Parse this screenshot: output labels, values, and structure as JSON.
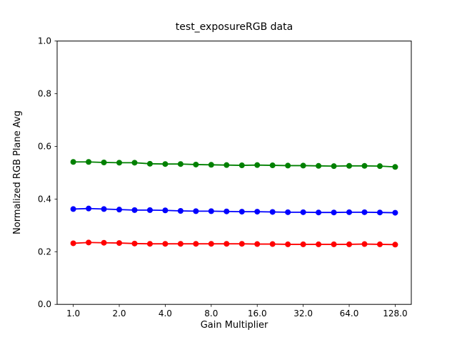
{
  "chart_data": {
    "type": "line",
    "title": "test_exposureRGB data",
    "xlabel": "Gain Multiplier",
    "ylabel": "Normalized RGB Plane Avg",
    "x_scale": "log2",
    "xlim": [
      0.784,
      163.2
    ],
    "ylim": [
      0.0,
      1.0
    ],
    "grid": false,
    "legend": "none",
    "xticks": [
      {
        "value": 1,
        "label": "1.0"
      },
      {
        "value": 2,
        "label": "2.0"
      },
      {
        "value": 4,
        "label": "4.0"
      },
      {
        "value": 8,
        "label": "8.0"
      },
      {
        "value": 16,
        "label": "16.0"
      },
      {
        "value": 32,
        "label": "32.0"
      },
      {
        "value": 64,
        "label": "64.0"
      },
      {
        "value": 128,
        "label": "128.0"
      }
    ],
    "yticks": [
      {
        "value": 0.0,
        "label": "0.0"
      },
      {
        "value": 0.2,
        "label": "0.2"
      },
      {
        "value": 0.4,
        "label": "0.4"
      },
      {
        "value": 0.6,
        "label": "0.6"
      },
      {
        "value": 0.8,
        "label": "0.8"
      },
      {
        "value": 1.0,
        "label": "1.0"
      }
    ],
    "x": [
      1.0,
      1.26,
      1.587,
      2.0,
      2.52,
      3.175,
      4.0,
      5.04,
      6.35,
      8.0,
      10.08,
      12.7,
      16.0,
      20.16,
      25.4,
      32.0,
      40.32,
      50.8,
      64.0,
      80.63,
      101.6,
      128.0
    ],
    "series": [
      {
        "name": "red",
        "color": "#ff0000",
        "values": [
          0.232,
          0.235,
          0.234,
          0.233,
          0.231,
          0.23,
          0.23,
          0.23,
          0.23,
          0.23,
          0.23,
          0.23,
          0.229,
          0.229,
          0.228,
          0.228,
          0.228,
          0.228,
          0.228,
          0.229,
          0.228,
          0.227
        ]
      },
      {
        "name": "green",
        "color": "#008000",
        "values": [
          0.541,
          0.541,
          0.539,
          0.538,
          0.538,
          0.534,
          0.533,
          0.533,
          0.531,
          0.53,
          0.529,
          0.528,
          0.529,
          0.528,
          0.527,
          0.527,
          0.526,
          0.525,
          0.526,
          0.526,
          0.525,
          0.522
        ]
      },
      {
        "name": "blue",
        "color": "#0000ff",
        "values": [
          0.362,
          0.364,
          0.362,
          0.36,
          0.358,
          0.358,
          0.357,
          0.355,
          0.354,
          0.354,
          0.353,
          0.352,
          0.352,
          0.351,
          0.35,
          0.35,
          0.349,
          0.349,
          0.35,
          0.35,
          0.349,
          0.348
        ]
      }
    ]
  }
}
